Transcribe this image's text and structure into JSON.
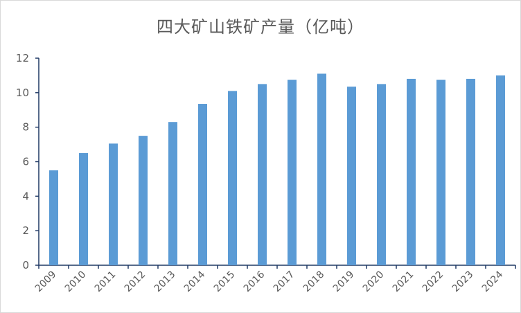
{
  "chart_data": {
    "type": "bar",
    "title": "四大矿山铁矿产量（亿吨）",
    "xlabel": "",
    "ylabel": "",
    "categories": [
      "2009",
      "2010",
      "2011",
      "2012",
      "2013",
      "2014",
      "2015",
      "2016",
      "2017",
      "2018",
      "2019",
      "2020",
      "2021",
      "2022",
      "2023",
      "2024"
    ],
    "values": [
      5.5,
      6.5,
      7.05,
      7.5,
      8.3,
      9.35,
      10.1,
      10.5,
      10.75,
      11.1,
      10.35,
      10.5,
      10.8,
      10.75,
      10.8,
      11.0
    ],
    "ylim": [
      0,
      12
    ],
    "yticks": [
      "0",
      "2",
      "4",
      "6",
      "8",
      "10",
      "12"
    ],
    "grid": false,
    "legend": "none",
    "colors": {
      "bar": "#5b9bd5",
      "axis": "#1f3864",
      "tick_text": "#595959",
      "title": "#595959"
    }
  }
}
